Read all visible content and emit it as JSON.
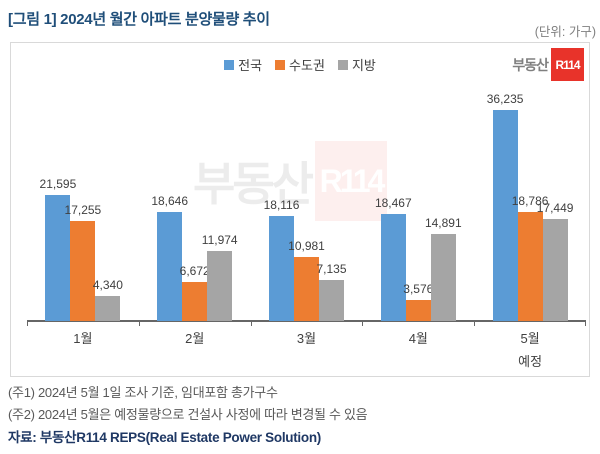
{
  "page": {
    "title": "[그림 1] 2024년 월간 아파트 분양물량 추이",
    "unit_label": "(단위: 가구)"
  },
  "logo": {
    "prefix": "부동산",
    "mark": "R114"
  },
  "watermark": {
    "prefix": "부동산",
    "mark": "R114"
  },
  "chart_data": {
    "type": "bar",
    "title": "2024년 월간 아파트 분양물량 추이",
    "unit": "가구",
    "categories": [
      "1월",
      "2월",
      "3월",
      "4월",
      "5월"
    ],
    "category_sublabels": [
      "",
      "",
      "",
      "",
      "예정"
    ],
    "series": [
      {
        "name": "전국",
        "color": "#5B9BD5",
        "values": [
          21595,
          18646,
          18116,
          18467,
          36235
        ]
      },
      {
        "name": "수도권",
        "color": "#ED7D31",
        "values": [
          17255,
          6672,
          10981,
          3576,
          18786
        ]
      },
      {
        "name": "지방",
        "color": "#A5A5A5",
        "values": [
          4340,
          11974,
          7135,
          14891,
          17449
        ]
      }
    ],
    "legend_position": "top-center",
    "gridlines": false,
    "y_axis_visible": false,
    "data_labels": true,
    "ylim": [
      0,
      36235
    ]
  },
  "footer": {
    "note1": "(주1) 2024년 5월 1일 조사 기준, 임대포함 총가구수",
    "note2": "(주2) 2024년 5월은 예정물량으로 건설사 사정에 따라 변경될 수 있음",
    "source": "자료: 부동산R114 REPS(Real Estate Power Solution)"
  }
}
